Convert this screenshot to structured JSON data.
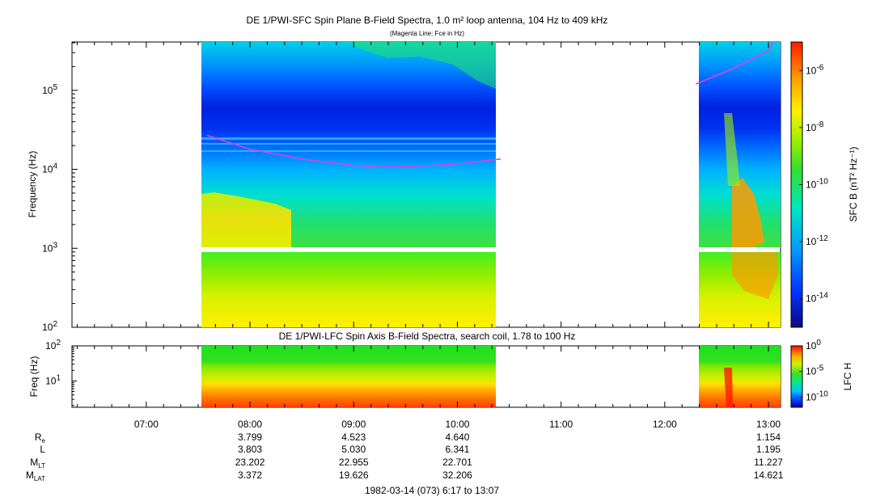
{
  "chart_data": [
    {
      "type": "heatmap",
      "title": "DE 1/PWI-SFC  Spin Plane B-Field Spectra, 1.0 m² loop antenna, 104 Hz to 409 kHz",
      "subtitle": "(Magenta Line: Fce in Hz)",
      "ylabel": "Frequency (Hz)",
      "yscale": "log",
      "ylim": [
        100,
        409000
      ],
      "y_ticks": [
        "10^2",
        "10^3",
        "10^4",
        "10^5"
      ],
      "xlim": [
        "06:17",
        "13:07"
      ],
      "x_ticks": [
        "07:00",
        "08:00",
        "09:00",
        "10:00",
        "11:00",
        "12:00",
        "13:00"
      ],
      "data_coverage": [
        [
          "07:35",
          "10:25"
        ],
        [
          "12:18",
          "13:07"
        ]
      ],
      "colorbar": {
        "label": "SFC B (nT² Hz⁻¹)",
        "scale": "log",
        "range": [
          1e-15,
          1e-05
        ],
        "ticks": [
          "10^-6",
          "10^-8",
          "10^-10",
          "10^-12",
          "10^-14"
        ]
      },
      "fce_line": {
        "color": "#e040e0",
        "segments": [
          {
            "x": [
              "07:35",
              "08:00",
              "08:30",
              "09:00",
              "09:15",
              "09:30",
              "10:00",
              "10:25"
            ],
            "y": [
              27000,
              18000,
              13500,
              11200,
              10700,
              10800,
              11700,
              13500
            ]
          },
          {
            "x": [
              "12:18",
              "12:40",
              "13:00",
              "13:03"
            ],
            "y": [
              120000,
              190000,
              320000,
              409000
            ]
          }
        ]
      }
    },
    {
      "type": "heatmap",
      "title": "DE 1/PWI-LFC  Spin Axis B-Field Spectra, search coil, 1.78 to 100 Hz",
      "ylabel": "Freq (Hz)",
      "yscale": "log",
      "ylim": [
        1.78,
        100
      ],
      "y_ticks": [
        "10^1",
        "10^2"
      ],
      "xlim": [
        "06:17",
        "13:07"
      ],
      "data_coverage": [
        [
          "07:35",
          "10:25"
        ],
        [
          "12:18",
          "13:07"
        ]
      ],
      "colorbar": {
        "label": "LFC H",
        "scale": "log",
        "range": [
          1e-12,
          1
        ],
        "ticks": [
          "10^0",
          "10^-5",
          "10^-10"
        ]
      }
    }
  ],
  "ephemeris": {
    "rows": [
      {
        "label": "R",
        "sub": "e",
        "values": [
          "3.799",
          "4.523",
          "4.640",
          "",
          "",
          "1.154"
        ]
      },
      {
        "label": "L",
        "sub": "",
        "values": [
          "3.803",
          "5.030",
          "6.341",
          "",
          "",
          "1.195"
        ]
      },
      {
        "label": "M",
        "sub": "LT",
        "values": [
          "23.202",
          "22.955",
          "22.701",
          "",
          "",
          "11.227"
        ]
      },
      {
        "label": "M",
        "sub": "LAT",
        "values": [
          "3.372",
          "19.626",
          "32.206",
          "",
          "",
          "14.621"
        ]
      }
    ],
    "columns": [
      "08:00",
      "09:00",
      "10:00",
      "11:00",
      "12:00",
      "13:00"
    ]
  },
  "footer": "1982-03-14 (073) 6:17 to 13:07"
}
